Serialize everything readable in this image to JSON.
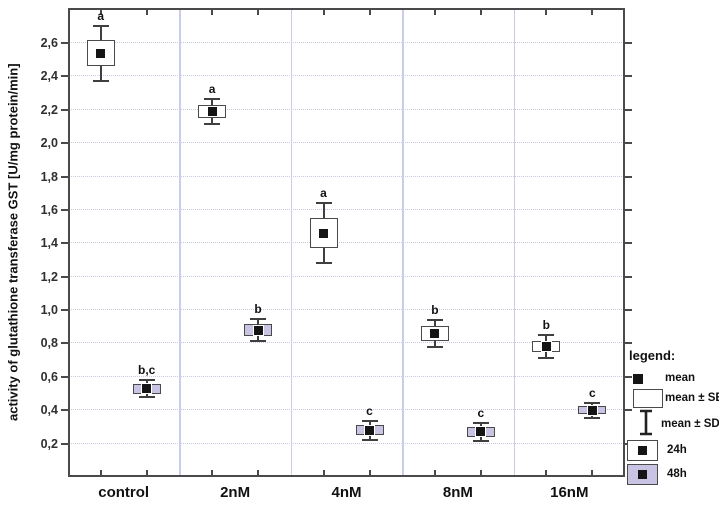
{
  "chart_data": {
    "type": "box",
    "title": "",
    "ylabel": "activity of glutathione transferase GST [U/mg protein/min]",
    "xlabel": "",
    "ylim": [
      0,
      2.81
    ],
    "yticks": [
      0.2,
      0.4,
      0.6,
      0.8,
      1.0,
      1.2,
      1.4,
      1.6,
      1.8,
      2.0,
      2.2,
      2.4,
      2.6
    ],
    "ytick_labels": [
      "0,2",
      "0,4",
      "0,6",
      "0,8",
      "1,0",
      "1,2",
      "1,4",
      "1,6",
      "1,8",
      "2,0",
      "2,2",
      "2,4",
      "2,6"
    ],
    "decimal_separator": ",",
    "categories": [
      "control",
      "2nM",
      "4nM",
      "8nM",
      "16nM"
    ],
    "grid": {
      "horizontal_style": "dotted",
      "vertical_group_separators": true
    },
    "marker_meaning": {
      "square": "mean",
      "box": "mean ± SE",
      "whiskers": "mean ± SD"
    },
    "series": [
      {
        "name": "24h",
        "fill": "#ffffff",
        "points": [
          {
            "category": "control",
            "mean": 2.54,
            "se": 0.08,
            "sd": 0.165,
            "letter": "a"
          },
          {
            "category": "2nM",
            "mean": 2.19,
            "se": 0.04,
            "sd": 0.077,
            "letter": "a"
          },
          {
            "category": "4nM",
            "mean": 1.46,
            "se": 0.09,
            "sd": 0.18,
            "letter": "a"
          },
          {
            "category": "8nM",
            "mean": 0.86,
            "se": 0.045,
            "sd": 0.08,
            "letter": "b"
          },
          {
            "category": "16nM",
            "mean": 0.78,
            "se": 0.033,
            "sd": 0.07,
            "letter": "b"
          }
        ]
      },
      {
        "name": "48h",
        "fill": "#c9c4e3",
        "points": [
          {
            "category": "control",
            "mean": 0.53,
            "se": 0.03,
            "sd": 0.05,
            "letter": "b,c"
          },
          {
            "category": "2nM",
            "mean": 0.88,
            "se": 0.037,
            "sd": 0.066,
            "letter": "b"
          },
          {
            "category": "4nM",
            "mean": 0.28,
            "se": 0.031,
            "sd": 0.057,
            "letter": "c"
          },
          {
            "category": "8nM",
            "mean": 0.27,
            "se": 0.032,
            "sd": 0.055,
            "letter": "c"
          },
          {
            "category": "16nM",
            "mean": 0.4,
            "se": 0.025,
            "sd": 0.046,
            "letter": "c"
          }
        ]
      }
    ],
    "legend": {
      "title": "legend:",
      "position": "right",
      "items": [
        {
          "key": "mean",
          "label": "mean"
        },
        {
          "key": "mean-se",
          "label": "mean ± SE"
        },
        {
          "key": "mean-sd",
          "label": "mean ± SD"
        },
        {
          "key": "24h",
          "label": "24h"
        },
        {
          "key": "48h",
          "label": "48h"
        }
      ]
    }
  },
  "colors": {
    "background": "#ffffff",
    "plot_border": "#4a4a4a",
    "box_border": "#4a4a4a",
    "whisker": "#3f3f3f",
    "mean_marker": "#151515",
    "series_24h_fill": "#ffffff",
    "series_48h_fill": "#c9c4e3",
    "gridline": "#c9cadd",
    "group_separator": "#c9cdea",
    "tick_label": "#2f2f2f",
    "axis_title": "#111111"
  }
}
